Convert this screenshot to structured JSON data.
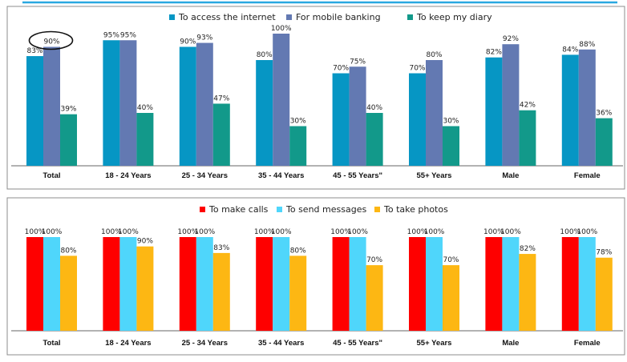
{
  "colors": {
    "top_rule": "#29a8e0",
    "panel_border": "#8c8c8c",
    "axis": "#666666"
  },
  "chart_data": [
    {
      "type": "bar",
      "categories": [
        "Total",
        "18 - 24 Years",
        "25 - 34 Years",
        "35 - 44 Years",
        "45 - 55 Years\"",
        "55+ Years",
        "Male",
        "Female"
      ],
      "ylim": [
        0,
        100
      ],
      "grid": false,
      "legend_position": "top",
      "series": [
        {
          "name": "To access the internet",
          "color": "#0696c4",
          "values": [
            83,
            95,
            90,
            80,
            70,
            70,
            82,
            84
          ],
          "labels": [
            "83%",
            "95%",
            "90%",
            "80%",
            "70%",
            "70%",
            "82%",
            "84%"
          ]
        },
        {
          "name": "For mobile banking",
          "color": "#6379b2",
          "values": [
            90,
            95,
            93,
            100,
            75,
            80,
            92,
            88
          ],
          "labels": [
            "90%",
            "95%",
            "93%",
            "100%",
            "75%",
            "80%",
            "92%",
            "88%"
          ]
        },
        {
          "name": "To keep my diary",
          "color": "#12998a",
          "values": [
            39,
            40,
            47,
            30,
            40,
            30,
            42,
            36
          ],
          "labels": [
            "39%",
            "40%",
            "47%",
            "30%",
            "40%",
            "30%",
            "42%",
            "36%"
          ]
        }
      ],
      "annotation": {
        "type": "ellipse",
        "category_index": 0,
        "series_index": 1
      }
    },
    {
      "type": "bar",
      "categories": [
        "Total",
        "18 - 24 Years",
        "25 - 34 Years",
        "35 - 44 Years",
        "45 - 55 Years\"",
        "55+ Years",
        "Male",
        "Female"
      ],
      "ylim": [
        0,
        100
      ],
      "grid": false,
      "legend_position": "top",
      "series": [
        {
          "name": "To make calls",
          "color": "#fe0000",
          "values": [
            100,
            100,
            100,
            100,
            100,
            100,
            100,
            100
          ],
          "labels": [
            "100%",
            "100%",
            "100%",
            "100%",
            "100%",
            "100%",
            "100%",
            "100%"
          ]
        },
        {
          "name": "To send messages",
          "color": "#4fd6fb",
          "values": [
            100,
            100,
            100,
            100,
            100,
            100,
            100,
            100
          ],
          "labels": [
            "100%",
            "100%",
            "100%",
            "100%",
            "100%",
            "100%",
            "100%",
            "100%"
          ]
        },
        {
          "name": "To take photos",
          "color": "#fdb713",
          "values": [
            80,
            90,
            83,
            80,
            70,
            70,
            82,
            78
          ],
          "labels": [
            "80%",
            "90%",
            "83%",
            "80%",
            "70%",
            "70%",
            "82%",
            "78%"
          ]
        }
      ]
    }
  ]
}
